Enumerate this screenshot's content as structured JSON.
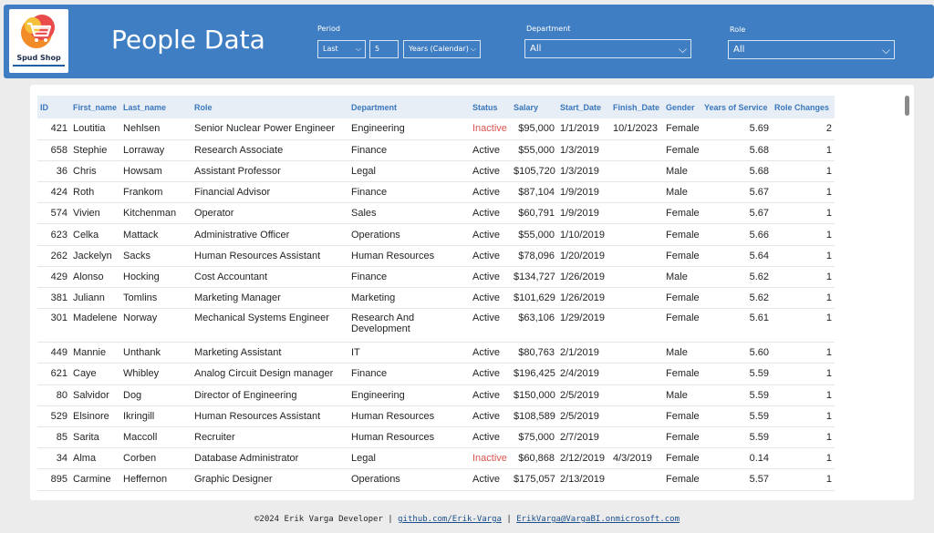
{
  "app": {
    "logo_text": "Spud Shop",
    "title": "People Data"
  },
  "filters": {
    "period": {
      "label": "Period",
      "mode": "Last",
      "count": "5",
      "unit": "Years (Calendar)"
    },
    "department": {
      "label": "Department",
      "value": "All"
    },
    "role": {
      "label": "Role",
      "value": "All"
    }
  },
  "table": {
    "columns": [
      "ID",
      "First_name",
      "Last_name",
      "Role",
      "Department",
      "Status",
      "Salary",
      "Start_Date",
      "Finish_Date",
      "Gender",
      "Years of Service",
      "Role Changes"
    ],
    "rows": [
      [
        "421",
        "Loutitia",
        "Nehlsen",
        "Senior Nuclear Power Engineer",
        "Engineering",
        "Inactive",
        "$95,000",
        "1/1/2019",
        "10/1/2023",
        "Female",
        "5.69",
        "2"
      ],
      [
        "658",
        "Stephie",
        "Lorraway",
        "Research Associate",
        "Finance",
        "Active",
        "$55,000",
        "1/3/2019",
        "",
        "Female",
        "5.68",
        "1"
      ],
      [
        "36",
        "Chris",
        "Howsam",
        "Assistant Professor",
        "Legal",
        "Active",
        "$105,720",
        "1/3/2019",
        "",
        "Male",
        "5.68",
        "1"
      ],
      [
        "424",
        "Roth",
        "Frankom",
        "Financial Advisor",
        "Finance",
        "Active",
        "$87,104",
        "1/9/2019",
        "",
        "Male",
        "5.67",
        "1"
      ],
      [
        "574",
        "Vivien",
        "Kitchenman",
        "Operator",
        "Sales",
        "Active",
        "$60,791",
        "1/9/2019",
        "",
        "Female",
        "5.67",
        "1"
      ],
      [
        "623",
        "Celka",
        "Mattack",
        "Administrative Officer",
        "Operations",
        "Active",
        "$55,000",
        "1/10/2019",
        "",
        "Female",
        "5.66",
        "1"
      ],
      [
        "262",
        "Jackelyn",
        "Sacks",
        "Human Resources Assistant",
        "Human Resources",
        "Active",
        "$78,096",
        "1/20/2019",
        "",
        "Female",
        "5.64",
        "1"
      ],
      [
        "429",
        "Alonso",
        "Hocking",
        "Cost Accountant",
        "Finance",
        "Active",
        "$134,727",
        "1/26/2019",
        "",
        "Male",
        "5.62",
        "1"
      ],
      [
        "381",
        "Juliann",
        "Tomlins",
        "Marketing Manager",
        "Marketing",
        "Active",
        "$101,629",
        "1/26/2019",
        "",
        "Female",
        "5.62",
        "1"
      ],
      [
        "301",
        "Madelene",
        "Norway",
        "Mechanical Systems Engineer",
        "Research And Development",
        "Active",
        "$63,106",
        "1/29/2019",
        "",
        "Female",
        "5.61",
        "1"
      ],
      [
        "449",
        "Mannie",
        "Unthank",
        "Marketing Assistant",
        "IT",
        "Active",
        "$80,763",
        "2/1/2019",
        "",
        "Male",
        "5.60",
        "1"
      ],
      [
        "621",
        "Caye",
        "Whibley",
        "Analog Circuit Design manager",
        "Finance",
        "Active",
        "$196,425",
        "2/4/2019",
        "",
        "Female",
        "5.59",
        "1"
      ],
      [
        "80",
        "Salvidor",
        "Dog",
        "Director of Engineering",
        "Engineering",
        "Active",
        "$150,000",
        "2/5/2019",
        "",
        "Male",
        "5.59",
        "1"
      ],
      [
        "529",
        "Elsinore",
        "Ikringill",
        "Human Resources Assistant",
        "Human Resources",
        "Active",
        "$108,589",
        "2/5/2019",
        "",
        "Female",
        "5.59",
        "1"
      ],
      [
        "85",
        "Sarita",
        "Maccoll",
        "Recruiter",
        "Human Resources",
        "Active",
        "$75,000",
        "2/7/2019",
        "",
        "Female",
        "5.59",
        "1"
      ],
      [
        "34",
        "Alma",
        "Corben",
        "Database Administrator",
        "Legal",
        "Inactive",
        "$60,868",
        "2/12/2019",
        "4/3/2019",
        "Female",
        "0.14",
        "1"
      ],
      [
        "895",
        "Carmine",
        "Heffernon",
        "Graphic Designer",
        "Operations",
        "Active",
        "$175,057",
        "2/13/2019",
        "",
        "Female",
        "5.57",
        "1"
      ]
    ]
  },
  "footer": {
    "credit": "©2024 Erik Varga Developer",
    "sep1": "|",
    "github": "github.com/Erik-Varga",
    "sep2": "|",
    "email": "ErikVarga@VargaBI.onmicrosoft.com"
  },
  "colors": {
    "header": "#3f7ec2",
    "header_text": "#3a77bd",
    "inactive": "#d9534f"
  }
}
